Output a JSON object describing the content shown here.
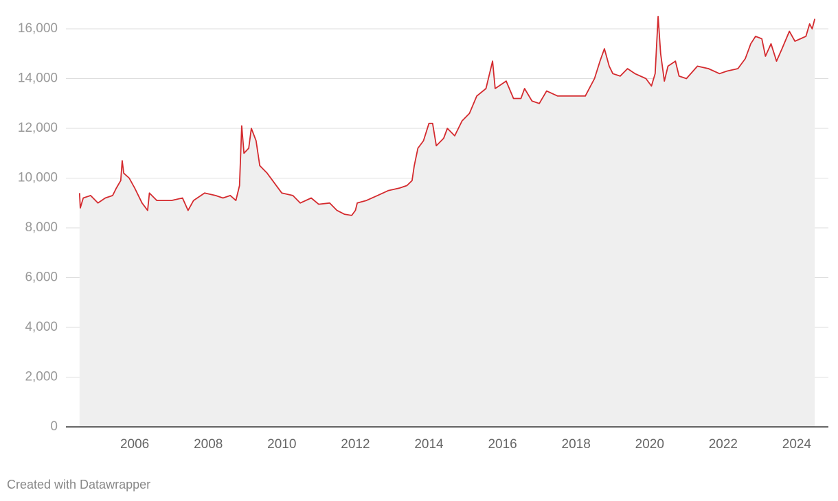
{
  "chart_data": {
    "type": "area-line",
    "credit": "Created with Datawrapper",
    "x": [
      2004.5,
      2004.52,
      2004.6,
      2004.8,
      2005.0,
      2005.2,
      2005.4,
      2005.5,
      2005.62,
      2005.66,
      2005.7,
      2005.85,
      2006.0,
      2006.2,
      2006.35,
      2006.4,
      2006.6,
      2007.0,
      2007.3,
      2007.45,
      2007.6,
      2007.9,
      2008.2,
      2008.4,
      2008.6,
      2008.75,
      2008.85,
      2008.91,
      2008.97,
      2009.1,
      2009.17,
      2009.3,
      2009.4,
      2009.6,
      2009.8,
      2010.0,
      2010.3,
      2010.5,
      2010.8,
      2011.0,
      2011.3,
      2011.5,
      2011.7,
      2011.9,
      2012.0,
      2012.05,
      2012.3,
      2012.6,
      2012.9,
      2013.2,
      2013.4,
      2013.54,
      2013.6,
      2013.7,
      2013.85,
      2014.0,
      2014.1,
      2014.2,
      2014.4,
      2014.5,
      2014.7,
      2014.9,
      2015.1,
      2015.3,
      2015.55,
      2015.73,
      2015.8,
      2016.0,
      2016.1,
      2016.3,
      2016.5,
      2016.6,
      2016.8,
      2017.0,
      2017.2,
      2017.5,
      2017.9,
      2018.1,
      2018.25,
      2018.5,
      2018.65,
      2018.77,
      2018.9,
      2019.0,
      2019.2,
      2019.4,
      2019.6,
      2019.9,
      2020.05,
      2020.15,
      2020.23,
      2020.3,
      2020.4,
      2020.5,
      2020.7,
      2020.8,
      2021.0,
      2021.3,
      2021.6,
      2021.9,
      2022.1,
      2022.4,
      2022.6,
      2022.75,
      2022.88,
      2023.05,
      2023.15,
      2023.3,
      2023.45,
      2023.6,
      2023.8,
      2023.95,
      2024.1,
      2024.25,
      2024.35,
      2024.42,
      2024.49
    ],
    "series": [
      {
        "color": "#d42a2e",
        "values": [
          9400,
          8800,
          9200,
          9300,
          9000,
          9200,
          9300,
          9600,
          9900,
          10700,
          10200,
          10000,
          9600,
          9000,
          8700,
          9400,
          9100,
          9100,
          9200,
          8700,
          9100,
          9400,
          9300,
          9200,
          9300,
          9100,
          9700,
          12100,
          11000,
          11200,
          12000,
          11500,
          10500,
          10200,
          9800,
          9400,
          9300,
          9000,
          9200,
          8950,
          9000,
          8700,
          8550,
          8500,
          8700,
          9000,
          9100,
          9300,
          9500,
          9600,
          9700,
          9900,
          10500,
          11200,
          11500,
          12200,
          12200,
          11300,
          11600,
          12000,
          11700,
          12300,
          12600,
          13300,
          13600,
          14700,
          13600,
          13800,
          13900,
          13200,
          13200,
          13600,
          13100,
          13000,
          13500,
          13300,
          13300,
          13300,
          13300,
          14000,
          14700,
          15200,
          14500,
          14200,
          14100,
          14400,
          14200,
          14000,
          13700,
          14200,
          16500,
          15000,
          13900,
          14500,
          14700,
          14100,
          14000,
          14500,
          14400,
          14200,
          14300,
          14400,
          14800,
          15400,
          15700,
          15600,
          14900,
          15400,
          14700,
          15200,
          15900,
          15500,
          15600,
          15700,
          16200,
          16000,
          16400
        ]
      }
    ],
    "fill": "#efefef",
    "xlim": [
      2004.13,
      2024.86
    ],
    "xticks": [
      2006,
      2008,
      2010,
      2012,
      2014,
      2016,
      2018,
      2020,
      2022,
      2024
    ],
    "ylim": [
      0,
      16000
    ],
    "yticks": [
      0,
      {
        "value": 2000,
        "label": "2,000"
      },
      {
        "value": 4000,
        "label": "4,000"
      },
      {
        "value": 6000,
        "label": "6,000"
      },
      {
        "value": 8000,
        "label": "8,000"
      },
      {
        "value": 10000,
        "label": "10,000"
      },
      {
        "value": 12000,
        "label": "12,000"
      },
      {
        "value": 14000,
        "label": "14,000"
      },
      {
        "value": 16000,
        "label": "16,000"
      }
    ],
    "grid": true
  }
}
